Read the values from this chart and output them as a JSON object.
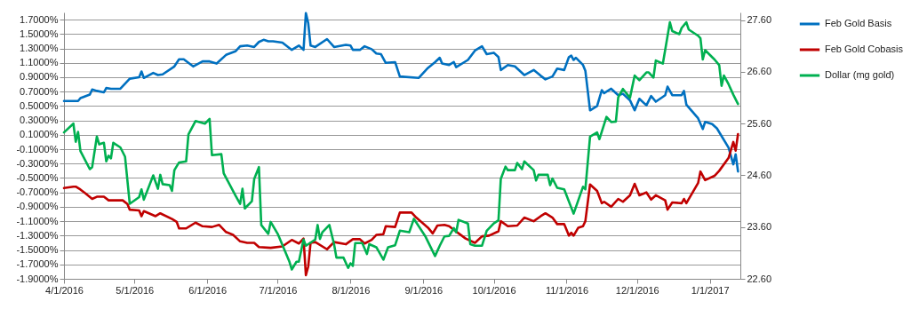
{
  "chart_data": {
    "type": "line",
    "xlim": [
      "2016-04-01",
      "2017-01-14"
    ],
    "xticks": [
      {
        "value": "2016-04-01",
        "label": "4/1/2016"
      },
      {
        "value": "2016-05-01",
        "label": "5/1/2016"
      },
      {
        "value": "2016-06-01",
        "label": "6/1/2016"
      },
      {
        "value": "2016-07-01",
        "label": "7/1/2016"
      },
      {
        "value": "2016-08-01",
        "label": "8/1/2016"
      },
      {
        "value": "2016-09-01",
        "label": "9/1/2016"
      },
      {
        "value": "2016-10-01",
        "label": "10/1/2016"
      },
      {
        "value": "2016-11-01",
        "label": "11/1/2016"
      },
      {
        "value": "2016-12-01",
        "label": "12/1/2016"
      },
      {
        "value": "2017-01-01",
        "label": "1/1/2017"
      }
    ],
    "ylim": [
      -1.9,
      1.8
    ],
    "yticks": [
      {
        "value": -1.9,
        "label": "-1.9000%"
      },
      {
        "value": -1.7,
        "label": "-1.7000%"
      },
      {
        "value": -1.5,
        "label": "-1.5000%"
      },
      {
        "value": -1.3,
        "label": "-1.3000%"
      },
      {
        "value": -1.1,
        "label": "-1.1000%"
      },
      {
        "value": -0.9,
        "label": "-0.9000%"
      },
      {
        "value": -0.7,
        "label": "-0.7000%"
      },
      {
        "value": -0.5,
        "label": "-0.5000%"
      },
      {
        "value": -0.3,
        "label": "-0.3000%"
      },
      {
        "value": -0.1,
        "label": "-0.1000%"
      },
      {
        "value": 0.1,
        "label": "0.1000%"
      },
      {
        "value": 0.3,
        "label": "0.3000%"
      },
      {
        "value": 0.5,
        "label": "0.5000%"
      },
      {
        "value": 0.7,
        "label": "0.7000%"
      },
      {
        "value": 0.9,
        "label": "0.9000%"
      },
      {
        "value": 1.1,
        "label": "1.1000%"
      },
      {
        "value": 1.3,
        "label": "1.3000%"
      },
      {
        "value": 1.5,
        "label": "1.5000%"
      },
      {
        "value": 1.7,
        "label": "1.7000%"
      }
    ],
    "y2lim": [
      22.6,
      27.75
    ],
    "y2ticks": [
      {
        "value": 22.6,
        "label": "22.60"
      },
      {
        "value": 23.6,
        "label": "23.60"
      },
      {
        "value": 24.6,
        "label": "24.60"
      },
      {
        "value": 25.6,
        "label": "25.60"
      },
      {
        "value": 26.6,
        "label": "26.60"
      },
      {
        "value": 27.6,
        "label": "27.60"
      }
    ],
    "grid": "y",
    "legend": "right",
    "series": [
      {
        "name": "Feb Gold Basis",
        "color": "#0070c0",
        "x": [
          "2016-04-01",
          "2016-04-07",
          "2016-04-08",
          "2016-04-12",
          "2016-04-13",
          "2016-04-15",
          "2016-04-18",
          "2016-04-19",
          "2016-04-21",
          "2016-04-25",
          "2016-04-29",
          "2016-05-03",
          "2016-05-04",
          "2016-05-05",
          "2016-05-09",
          "2016-05-11",
          "2016-05-13",
          "2016-05-18",
          "2016-05-20",
          "2016-05-22",
          "2016-05-26",
          "2016-05-30",
          "2016-06-02",
          "2016-06-05",
          "2016-06-09",
          "2016-06-13",
          "2016-06-15",
          "2016-06-18",
          "2016-06-21",
          "2016-06-23",
          "2016-06-25",
          "2016-06-27",
          "2016-06-29",
          "2016-07-03",
          "2016-07-07",
          "2016-07-10",
          "2016-07-12",
          "2016-07-13",
          "2016-07-14",
          "2016-07-15",
          "2016-07-17",
          "2016-07-22",
          "2016-07-25",
          "2016-07-30",
          "2016-08-01",
          "2016-08-02",
          "2016-08-05",
          "2016-08-07",
          "2016-08-10",
          "2016-08-12",
          "2016-08-14",
          "2016-08-16",
          "2016-08-20",
          "2016-08-22",
          "2016-08-30",
          "2016-09-03",
          "2016-09-06",
          "2016-09-08",
          "2016-09-09",
          "2016-09-12",
          "2016-09-14",
          "2016-09-15",
          "2016-09-20",
          "2016-09-23",
          "2016-09-26",
          "2016-09-28",
          "2016-10-01",
          "2016-10-03",
          "2016-10-04",
          "2016-10-07",
          "2016-10-10",
          "2016-10-14",
          "2016-10-18",
          "2016-10-21",
          "2016-10-23",
          "2016-10-26",
          "2016-10-28",
          "2016-10-31",
          "2016-11-02",
          "2016-11-03",
          "2016-11-04",
          "2016-11-05",
          "2016-11-08",
          "2016-11-09",
          "2016-11-11",
          "2016-11-14",
          "2016-11-16",
          "2016-11-17",
          "2016-11-20",
          "2016-11-23",
          "2016-11-25",
          "2016-11-28",
          "2016-11-30",
          "2016-12-02",
          "2016-12-05",
          "2016-12-07",
          "2016-12-09",
          "2016-12-13",
          "2016-12-14",
          "2016-12-16",
          "2016-12-20",
          "2016-12-21",
          "2016-12-22",
          "2016-12-27",
          "2016-12-29",
          "2016-12-30",
          "2017-01-02",
          "2017-01-04",
          "2017-01-09",
          "2017-01-11",
          "2017-01-12",
          "2017-01-13"
        ],
        "values": [
          0.57,
          0.57,
          0.61,
          0.66,
          0.73,
          0.71,
          0.69,
          0.75,
          0.74,
          0.74,
          0.88,
          0.9,
          0.98,
          0.89,
          0.96,
          0.93,
          0.94,
          1.05,
          1.15,
          1.15,
          1.05,
          1.12,
          1.12,
          1.09,
          1.21,
          1.26,
          1.33,
          1.34,
          1.32,
          1.39,
          1.42,
          1.4,
          1.4,
          1.38,
          1.28,
          1.34,
          1.28,
          1.79,
          1.65,
          1.34,
          1.32,
          1.43,
          1.32,
          1.35,
          1.34,
          1.28,
          1.28,
          1.33,
          1.29,
          1.23,
          1.22,
          1.1,
          1.11,
          0.91,
          0.89,
          1.03,
          1.11,
          1.17,
          1.09,
          1.07,
          1.11,
          1.04,
          1.14,
          1.27,
          1.33,
          1.22,
          1.24,
          1.18,
          1.0,
          1.07,
          1.05,
          0.93,
          1.0,
          0.92,
          0.87,
          0.91,
          1.02,
          1.0,
          1.18,
          1.2,
          1.14,
          1.17,
          1.07,
          0.99,
          0.44,
          0.5,
          0.72,
          0.68,
          0.74,
          0.65,
          0.67,
          0.58,
          0.44,
          0.6,
          0.51,
          0.64,
          0.56,
          0.65,
          0.77,
          0.65,
          0.65,
          0.71,
          0.52,
          0.33,
          0.18,
          0.28,
          0.25,
          0.19,
          -0.08,
          -0.31,
          -0.17,
          -0.41
        ]
      },
      {
        "name": "Feb Gold Cobasis",
        "color": "#c00000",
        "x": [
          "2016-04-01",
          "2016-04-05",
          "2016-04-06",
          "2016-04-08",
          "2016-04-10",
          "2016-04-13",
          "2016-04-15",
          "2016-04-18",
          "2016-04-20",
          "2016-04-26",
          "2016-04-28",
          "2016-04-29",
          "2016-05-03",
          "2016-05-04",
          "2016-05-05",
          "2016-05-10",
          "2016-05-12",
          "2016-05-17",
          "2016-05-19",
          "2016-05-20",
          "2016-05-23",
          "2016-05-27",
          "2016-05-30",
          "2016-06-03",
          "2016-06-06",
          "2016-06-09",
          "2016-06-12",
          "2016-06-15",
          "2016-06-18",
          "2016-06-21",
          "2016-06-23",
          "2016-06-28",
          "2016-07-03",
          "2016-07-07",
          "2016-07-10",
          "2016-07-12",
          "2016-07-13",
          "2016-07-14",
          "2016-07-15",
          "2016-07-17",
          "2016-07-22",
          "2016-07-25",
          "2016-07-30",
          "2016-08-02",
          "2016-08-05",
          "2016-08-07",
          "2016-08-10",
          "2016-08-12",
          "2016-08-15",
          "2016-08-16",
          "2016-08-20",
          "2016-08-22",
          "2016-08-27",
          "2016-08-29",
          "2016-09-03",
          "2016-09-05",
          "2016-09-07",
          "2016-09-10",
          "2016-09-12",
          "2016-09-19",
          "2016-09-23",
          "2016-09-26",
          "2016-09-29",
          "2016-10-03",
          "2016-10-04",
          "2016-10-07",
          "2016-10-11",
          "2016-10-14",
          "2016-10-18",
          "2016-10-21",
          "2016-10-23",
          "2016-10-26",
          "2016-10-28",
          "2016-10-31",
          "2016-11-02",
          "2016-11-03",
          "2016-11-04",
          "2016-11-06",
          "2016-11-08",
          "2016-11-09",
          "2016-11-11",
          "2016-11-14",
          "2016-11-16",
          "2016-11-17",
          "2016-11-20",
          "2016-11-23",
          "2016-11-25",
          "2016-11-28",
          "2016-11-30",
          "2016-12-02",
          "2016-12-05",
          "2016-12-07",
          "2016-12-09",
          "2016-12-13",
          "2016-12-14",
          "2016-12-16",
          "2016-12-20",
          "2016-12-21",
          "2016-12-22",
          "2016-12-27",
          "2016-12-28",
          "2016-12-30",
          "2017-01-03",
          "2017-01-05",
          "2017-01-09",
          "2017-01-11",
          "2017-01-12",
          "2017-01-13"
        ],
        "values": [
          -0.64,
          -0.62,
          -0.62,
          -0.66,
          -0.71,
          -0.79,
          -0.76,
          -0.76,
          -0.81,
          -0.81,
          -0.86,
          -0.94,
          -0.95,
          -1.03,
          -0.96,
          -1.03,
          -0.99,
          -1.07,
          -1.11,
          -1.2,
          -1.2,
          -1.12,
          -1.17,
          -1.18,
          -1.15,
          -1.25,
          -1.29,
          -1.38,
          -1.4,
          -1.4,
          -1.46,
          -1.47,
          -1.45,
          -1.36,
          -1.41,
          -1.34,
          -1.85,
          -1.73,
          -1.4,
          -1.39,
          -1.49,
          -1.39,
          -1.42,
          -1.35,
          -1.35,
          -1.41,
          -1.36,
          -1.29,
          -1.28,
          -1.17,
          -1.18,
          -0.98,
          -0.98,
          -1.05,
          -1.19,
          -1.27,
          -1.16,
          -1.15,
          -1.17,
          -1.34,
          -1.4,
          -1.31,
          -1.3,
          -1.24,
          -1.1,
          -1.17,
          -1.16,
          -1.05,
          -1.1,
          -1.03,
          -0.99,
          -1.05,
          -1.14,
          -1.14,
          -1.3,
          -1.26,
          -1.3,
          -1.19,
          -1.17,
          -1.1,
          -0.59,
          -0.68,
          -0.85,
          -0.83,
          -0.9,
          -0.79,
          -0.83,
          -0.74,
          -0.58,
          -0.74,
          -0.7,
          -0.8,
          -0.74,
          -0.81,
          -0.94,
          -0.84,
          -0.85,
          -0.79,
          -0.85,
          -0.57,
          -0.41,
          -0.53,
          -0.47,
          -0.4,
          -0.22,
          0.0,
          -0.12,
          0.11
        ]
      },
      {
        "name": "Dollar (mg gold)",
        "color": "#00b050",
        "axis": "y2",
        "x": [
          "2016-04-01",
          "2016-04-05",
          "2016-04-06",
          "2016-04-07",
          "2016-04-08",
          "2016-04-12",
          "2016-04-13",
          "2016-04-15",
          "2016-04-16",
          "2016-04-18",
          "2016-04-19",
          "2016-04-20",
          "2016-04-21",
          "2016-04-22",
          "2016-04-25",
          "2016-04-27",
          "2016-04-29",
          "2016-05-03",
          "2016-05-04",
          "2016-05-05",
          "2016-05-09",
          "2016-05-11",
          "2016-05-12",
          "2016-05-13",
          "2016-05-16",
          "2016-05-17",
          "2016-05-18",
          "2016-05-20",
          "2016-05-23",
          "2016-05-24",
          "2016-05-27",
          "2016-05-31",
          "2016-06-02",
          "2016-06-03",
          "2016-06-07",
          "2016-06-08",
          "2016-06-13",
          "2016-06-15",
          "2016-06-16",
          "2016-06-17",
          "2016-06-20",
          "2016-06-21",
          "2016-06-23",
          "2016-06-24",
          "2016-06-27",
          "2016-06-28",
          "2016-07-01",
          "2016-07-06",
          "2016-07-07",
          "2016-07-09",
          "2016-07-10",
          "2016-07-12",
          "2016-07-13",
          "2016-07-17",
          "2016-07-18",
          "2016-07-19",
          "2016-07-20",
          "2016-07-23",
          "2016-07-25",
          "2016-07-26",
          "2016-07-29",
          "2016-07-31",
          "2016-08-01",
          "2016-08-02",
          "2016-08-03",
          "2016-08-06",
          "2016-08-08",
          "2016-08-09",
          "2016-08-12",
          "2016-08-15",
          "2016-08-17",
          "2016-08-20",
          "2016-08-22",
          "2016-08-26",
          "2016-08-28",
          "2016-09-02",
          "2016-09-06",
          "2016-09-08",
          "2016-09-10",
          "2016-09-12",
          "2016-09-14",
          "2016-09-15",
          "2016-09-16",
          "2016-09-20",
          "2016-09-21",
          "2016-09-23",
          "2016-09-26",
          "2016-09-28",
          "2016-10-01",
          "2016-10-03",
          "2016-10-04",
          "2016-10-06",
          "2016-10-07",
          "2016-10-10",
          "2016-10-11",
          "2016-10-13",
          "2016-10-14",
          "2016-10-18",
          "2016-10-19",
          "2016-10-20",
          "2016-10-24",
          "2016-10-25",
          "2016-10-26",
          "2016-10-28",
          "2016-10-31",
          "2016-11-04",
          "2016-11-08",
          "2016-11-09",
          "2016-11-11",
          "2016-11-14",
          "2016-11-15",
          "2016-11-18",
          "2016-11-20",
          "2016-11-22",
          "2016-11-23",
          "2016-11-25",
          "2016-11-28",
          "2016-11-30",
          "2016-12-02",
          "2016-12-05",
          "2016-12-06",
          "2016-12-08",
          "2016-12-09",
          "2016-12-12",
          "2016-12-15",
          "2016-12-16",
          "2016-12-19",
          "2016-12-20",
          "2016-12-22",
          "2016-12-23",
          "2016-12-27",
          "2016-12-28",
          "2016-12-29",
          "2016-12-30",
          "2017-01-03",
          "2017-01-05",
          "2017-01-06",
          "2017-01-07",
          "2017-01-09",
          "2017-01-11",
          "2017-01-13"
        ],
        "values": [
          25.43,
          25.6,
          25.25,
          25.44,
          25.07,
          24.72,
          24.76,
          25.35,
          25.2,
          25.23,
          24.87,
          24.98,
          24.93,
          25.23,
          25.14,
          24.96,
          24.05,
          24.18,
          24.33,
          24.13,
          24.6,
          24.34,
          24.61,
          24.43,
          24.41,
          24.3,
          24.7,
          24.85,
          24.87,
          25.39,
          25.65,
          25.6,
          25.69,
          24.99,
          25.01,
          24.64,
          24.21,
          24.05,
          24.34,
          23.96,
          24.1,
          24.53,
          24.76,
          23.64,
          23.47,
          23.7,
          23.47,
          22.93,
          22.78,
          22.93,
          22.93,
          23.36,
          23.24,
          23.36,
          23.64,
          23.37,
          23.5,
          23.64,
          23.27,
          23.01,
          23.01,
          22.81,
          22.9,
          22.85,
          23.29,
          23.29,
          23.08,
          23.27,
          23.21,
          22.97,
          23.21,
          23.25,
          23.53,
          23.5,
          23.76,
          23.41,
          23.04,
          23.24,
          23.42,
          23.43,
          23.58,
          23.5,
          23.74,
          23.67,
          23.27,
          23.24,
          23.24,
          23.53,
          23.67,
          23.73,
          24.53,
          24.77,
          24.7,
          24.7,
          24.84,
          24.72,
          24.87,
          24.7,
          24.5,
          24.61,
          24.61,
          24.41,
          24.54,
          24.36,
          24.33,
          23.86,
          24.38,
          24.33,
          25.35,
          25.43,
          25.3,
          25.73,
          25.63,
          25.64,
          26.11,
          26.27,
          26.1,
          26.53,
          26.44,
          26.59,
          26.59,
          26.49,
          26.82,
          26.76,
          27.56,
          27.39,
          27.33,
          27.45,
          27.56,
          27.42,
          27.3,
          27.25,
          26.84,
          27.02,
          26.84,
          26.73,
          26.33,
          26.53,
          26.36,
          26.16,
          25.98
        ]
      }
    ]
  }
}
